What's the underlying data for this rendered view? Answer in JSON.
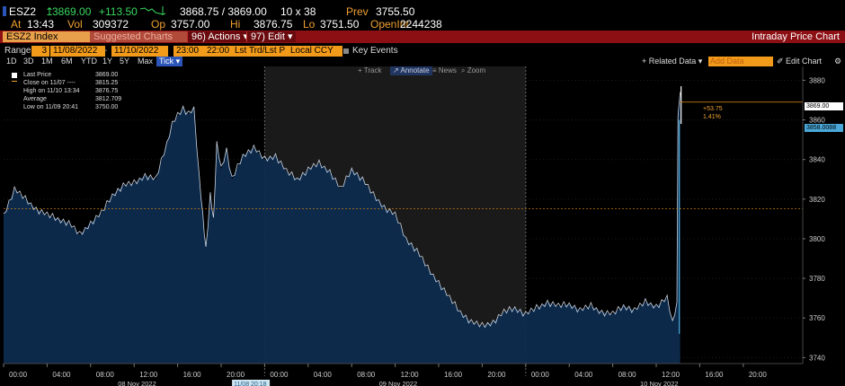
{
  "quote": {
    "ticker": "ESZ2",
    "last": "3869.00",
    "change": "+113.50",
    "bid_ask": "3868.75 / 3869.00",
    "size": "10 x 38",
    "prev_label": "Prev",
    "prev": "3755.50",
    "at_label": "At",
    "at_time": "13:43",
    "vol_label": "Vol",
    "vol": "309372",
    "op_label": "Op",
    "op": "3757.00",
    "hi_label": "Hi",
    "hi": "3876.75",
    "lo_label": "Lo",
    "lo": "3751.50",
    "openint_label": "OpenInt",
    "openint": "2244238"
  },
  "toolbar": {
    "security": "ESZ2 Index",
    "suggested": "Suggested Charts",
    "actions": "96) Actions ▾",
    "edit": "97) Edit ▾",
    "title": "Intraday Price Chart"
  },
  "controls": {
    "range_label": "Range",
    "range_num": "3",
    "start_date": "11/08/2022",
    "end_date": "11/10/2022",
    "start_time": "23:00",
    "end_time": "22:00",
    "price_mode": "Lst Trd/Lst P",
    "currency": "Local CCY",
    "key_events": "Key Events"
  },
  "range_buttons": [
    "1D",
    "3D",
    "1M",
    "6M",
    "YTD",
    "1Y",
    "5Y",
    "Max",
    "Tick ▾"
  ],
  "right_buttons": {
    "related": "+ Related Data ▾",
    "add_data_placeholder": "Add Data",
    "edit_chart": "✐ Edit Chart",
    "settings": "⚙"
  },
  "chart_tools": [
    "+ Track",
    "↗ Annotate",
    "≡ News",
    "⌕ Zoom"
  ],
  "legend": [
    {
      "label": "Last Price",
      "value": "3869.00"
    },
    {
      "label": "Close on 11/07 ----",
      "value": "3815.25"
    },
    {
      "label": "High on 11/10 13:34",
      "value": "3876.75"
    },
    {
      "label": "Average",
      "value": "3812.709"
    },
    {
      "label": "Low on 11/09 20:41",
      "value": "3750.00"
    }
  ],
  "annotations": {
    "change": "+53.75",
    "change_pct": "1.41%",
    "last_tag": "3869.00",
    "other_tag": "3858.0088"
  },
  "colors": {
    "area": "#0d2b4e",
    "line": "#c9d3e0",
    "accent": "#f29a1a",
    "close_line": "#e88a10",
    "bar_red": "#8c0f14"
  },
  "chart_data": {
    "type": "area",
    "ylim": [
      3737,
      3887
    ],
    "yticks": [
      3740,
      3760,
      3780,
      3800,
      3820,
      3840,
      3860,
      3880
    ],
    "close_level": 3815.25,
    "x_tick_labels": [
      "00:00",
      "04:00",
      "08:00",
      "12:00",
      "16:00",
      "20:00",
      "00:00",
      "04:00",
      "08:00",
      "12:00",
      "16:00",
      "20:00",
      "00:00",
      "04:00",
      "08:00",
      "12:00",
      "16:00",
      "20:00"
    ],
    "date_labels": [
      "08 Nov 2022",
      "11/08 20:18",
      "09 Nov 2022",
      "10 Nov 2022"
    ],
    "series": [
      {
        "hours": [
          0,
          1,
          2,
          3,
          4,
          5,
          6,
          7,
          8,
          9,
          10,
          11,
          12,
          13,
          14,
          15,
          15.5,
          16,
          16.5,
          17,
          17.5,
          18,
          18.3,
          18.6,
          19,
          19.3,
          19.6,
          20,
          20.5,
          21,
          22,
          23,
          24,
          25,
          26,
          27,
          28,
          29,
          30,
          31,
          32,
          33,
          34,
          35,
          36,
          37,
          38,
          39,
          40,
          41,
          42,
          43,
          44,
          45,
          46,
          47,
          48,
          49,
          50,
          51,
          52,
          53,
          54,
          55,
          56,
          57,
          58,
          59,
          60,
          61,
          61.5,
          61.9,
          62.0,
          62.2
        ],
        "values": [
          3812,
          3825,
          3820,
          3815,
          3812,
          3810,
          3808,
          3802,
          3808,
          3813,
          3822,
          3827,
          3828,
          3832,
          3830,
          3848,
          3858,
          3862,
          3866,
          3863,
          3866,
          3830,
          3812,
          3795,
          3822,
          3810,
          3848,
          3835,
          3845,
          3830,
          3842,
          3846,
          3840,
          3842,
          3834,
          3830,
          3835,
          3838,
          3834,
          3825,
          3835,
          3830,
          3822,
          3816,
          3812,
          3800,
          3794,
          3785,
          3778,
          3770,
          3763,
          3758,
          3756,
          3758,
          3763,
          3765,
          3762,
          3765,
          3768,
          3766,
          3767,
          3764,
          3766,
          3763,
          3762,
          3766,
          3764,
          3768,
          3766,
          3770,
          3758,
          3768,
          3862,
          3874
        ]
      }
    ]
  }
}
